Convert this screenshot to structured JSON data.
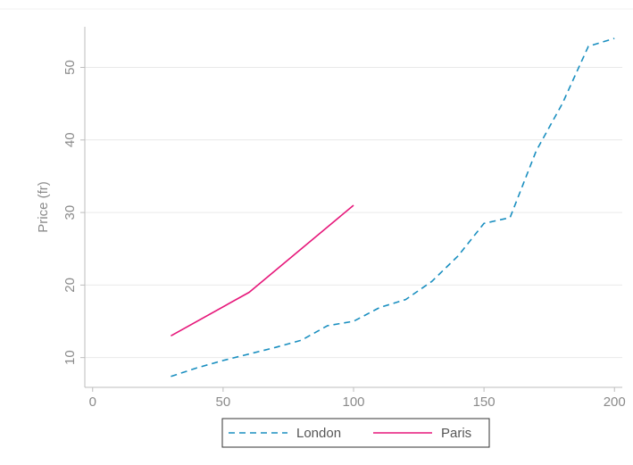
{
  "chart_data": {
    "type": "line",
    "title": "",
    "xlabel": "",
    "ylabel": "Price (fr)",
    "xlim": [
      -3,
      203
    ],
    "ylim": [
      5.9,
      55.6
    ],
    "x_ticks": [
      0,
      50,
      100,
      150,
      200
    ],
    "y_ticks": [
      10,
      20,
      30,
      40,
      50
    ],
    "grid": "horizontal",
    "legend_position": "bottom-center",
    "series": [
      {
        "name": "London",
        "color": "#1a8fc0",
        "style": "dashed",
        "x": [
          30,
          40,
          50,
          60,
          70,
          80,
          90,
          100,
          110,
          120,
          130,
          140,
          150,
          160,
          170,
          180,
          190,
          200
        ],
        "y": [
          7.4,
          8.6,
          9.6,
          10.5,
          11.4,
          12.4,
          14.4,
          15,
          16.9,
          18,
          20.5,
          24,
          28.5,
          29.3,
          38.5,
          45,
          52.9,
          54
        ]
      },
      {
        "name": "Paris",
        "color": "#e6177a",
        "style": "solid",
        "x": [
          30,
          60,
          100
        ],
        "y": [
          13,
          19,
          31
        ]
      }
    ]
  }
}
